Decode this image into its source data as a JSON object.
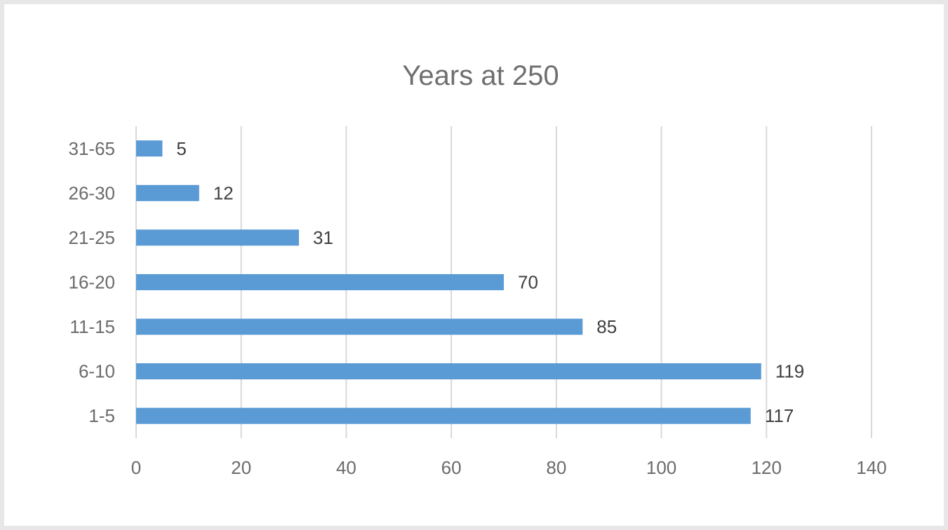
{
  "chart_data": {
    "type": "bar",
    "orientation": "horizontal",
    "title": "Years at 250",
    "categories": [
      "1-5",
      "6-10",
      "11-15",
      "16-20",
      "21-25",
      "26-30",
      "31-65"
    ],
    "values": [
      117,
      119,
      85,
      70,
      31,
      12,
      5
    ],
    "xlim": [
      0,
      140
    ],
    "xticks": [
      0,
      20,
      40,
      60,
      80,
      100,
      120,
      140
    ],
    "grid": "vertical",
    "legend": "none",
    "bar_color": "#5b9bd5",
    "data_labels": true
  }
}
